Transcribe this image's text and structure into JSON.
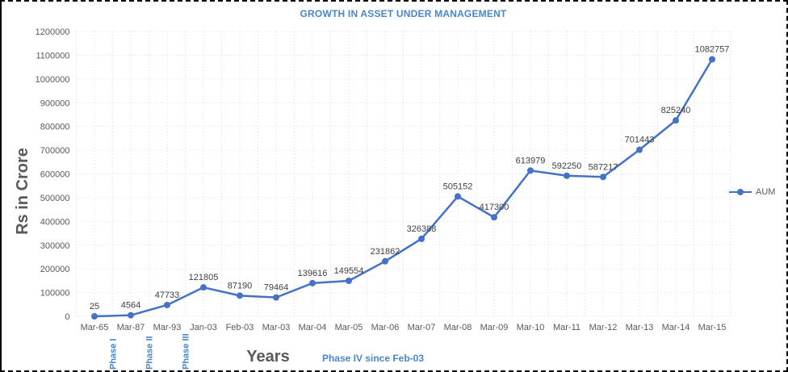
{
  "chart_data": {
    "type": "line",
    "title": "GROWTH IN ASSET UNDER MANAGEMENT",
    "xlabel": "Years",
    "ylabel": "Rs in Crore",
    "legend_position": "right",
    "grid": true,
    "ylim": [
      0,
      1200000
    ],
    "ytick_step": 100000,
    "categories": [
      "Mar-65",
      "Mar-87",
      "Mar-93",
      "Jan-03",
      "Feb-03",
      "Mar-03",
      "Mar-04",
      "Mar-05",
      "Mar-06",
      "Mar-07",
      "Mar-08",
      "Mar-09",
      "Mar-10",
      "Mar-11",
      "Mar-12",
      "Mar-13",
      "Mar-14",
      "Mar-15"
    ],
    "series": [
      {
        "name": "AUM",
        "values": [
          25,
          4564,
          47733,
          121805,
          87190,
          79464,
          139616,
          149554,
          231862,
          326388,
          505152,
          417300,
          613979,
          592250,
          587217,
          701443,
          825240,
          1082757
        ]
      }
    ],
    "annotations": [
      {
        "label": "Phase I",
        "after_category_index": 0
      },
      {
        "label": "Phase II",
        "after_category_index": 1
      },
      {
        "label": "Phase III",
        "after_category_index": 2
      },
      {
        "label": "Phase IV since Feb-03",
        "position": "below-x-axis"
      }
    ]
  },
  "colors": {
    "series_line": "#4472C4",
    "title_text": "#4A86C8",
    "phase_text": "#4A86C8",
    "axis_text": "#595959",
    "data_label_text": "#404040",
    "gridline": "#D9D9D9",
    "axis_title_text": "#595959",
    "legend_text": "#595959"
  }
}
